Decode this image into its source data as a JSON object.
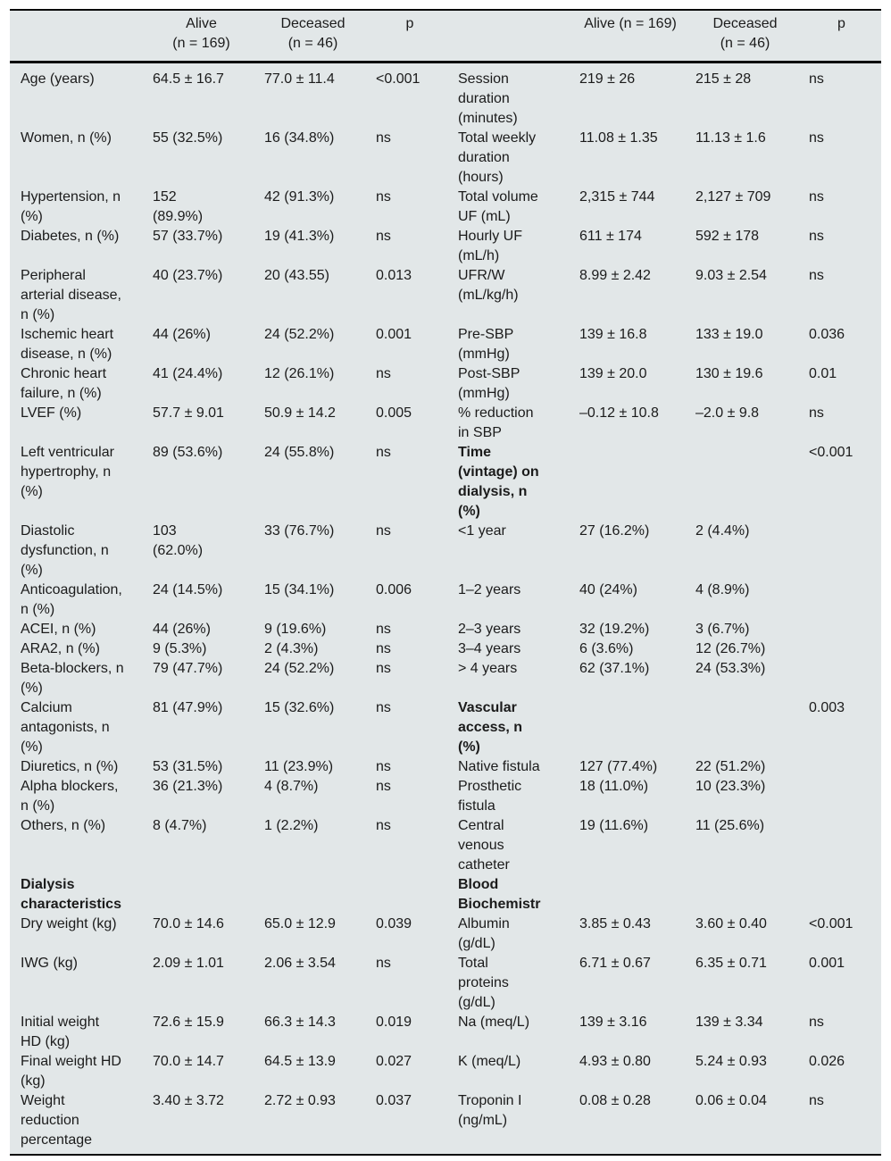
{
  "table": {
    "header": {
      "left": {
        "label": "",
        "alive": "Alive\n(n = 169)",
        "deceased": "Deceased\n(n = 46)",
        "p": "p"
      },
      "right": {
        "label": "",
        "alive": "Alive (n = 169)",
        "deceased": "Deceased\n(n = 46)",
        "p": "p"
      }
    },
    "rows": [
      {
        "left": {
          "label": "Age (years)",
          "alive": "64.5 ± 16.7",
          "deceased": "77.0 ± 11.4",
          "p": "<0.001"
        },
        "right": {
          "label": "Session\nduration\n(minutes)",
          "alive": "219 ± 26",
          "deceased": "215 ± 28",
          "p": "ns"
        }
      },
      {
        "left": {
          "label": "Women, n (%)",
          "alive": "55 (32.5%)",
          "deceased": "16 (34.8%)",
          "p": "ns"
        },
        "right": {
          "label": "Total weekly\nduration\n(hours)",
          "alive": "11.08 ± 1.35",
          "deceased": "11.13 ± 1.6",
          "p": "ns"
        }
      },
      {
        "left": {
          "label": "Hypertension, n\n(%)",
          "alive": "152\n(89.9%)",
          "deceased": "42 (91.3%)",
          "p": "ns"
        },
        "right": {
          "label": "Total volume\nUF (mL)",
          "alive": "2,315 ± 744",
          "deceased": "2,127 ± 709",
          "p": "ns"
        }
      },
      {
        "left": {
          "label": "Diabetes, n (%)",
          "alive": "57 (33.7%)",
          "deceased": "19 (41.3%)",
          "p": "ns"
        },
        "right": {
          "label": "Hourly UF\n(mL/h)",
          "alive": "611 ± 174",
          "deceased": "592 ± 178",
          "p": "ns"
        }
      },
      {
        "left": {
          "label": "Peripheral\narterial disease,\nn (%)",
          "alive": "40 (23.7%)",
          "deceased": "20 (43.55)",
          "p": "0.013"
        },
        "right": {
          "label": "UFR/W\n(mL/kg/h)",
          "alive": "8.99 ± 2.42",
          "deceased": "9.03 ± 2.54",
          "p": "ns"
        }
      },
      {
        "left": {
          "label": "Ischemic heart\ndisease, n (%)",
          "alive": "44 (26%)",
          "deceased": "24 (52.2%)",
          "p": "0.001"
        },
        "right": {
          "label": "Pre-SBP\n(mmHg)",
          "alive": "139 ± 16.8",
          "deceased": "133 ± 19.0",
          "p": "0.036"
        }
      },
      {
        "left": {
          "label": "Chronic heart\nfailure, n (%)",
          "alive": "41 (24.4%)",
          "deceased": "12 (26.1%)",
          "p": "ns"
        },
        "right": {
          "label": "Post-SBP\n(mmHg)",
          "alive": "139 ± 20.0",
          "deceased": "130 ± 19.6",
          "p": "0.01"
        }
      },
      {
        "left": {
          "label": "LVEF (%)",
          "alive": "57.7 ± 9.01",
          "deceased": "50.9 ± 14.2",
          "p": "0.005"
        },
        "right": {
          "label": "% reduction\nin SBP",
          "alive": "–0.12 ± 10.8",
          "deceased": "–2.0 ± 9.8",
          "p": "ns"
        }
      },
      {
        "left": {
          "label": "Left ventricular\nhypertrophy, n\n(%)",
          "alive": "89 (53.6%)",
          "deceased": "24 (55.8%)",
          "p": "ns"
        },
        "right": {
          "label": "Time\n(vintage) on\ndialysis, n\n(%)",
          "alive": "",
          "deceased": "",
          "p": "<0.001",
          "bold": true
        }
      },
      {
        "left": {
          "label": "Diastolic\ndysfunction, n\n(%)",
          "alive": "103\n(62.0%)",
          "deceased": "33 (76.7%)",
          "p": "ns"
        },
        "right": {
          "label": "<1 year",
          "alive": "27 (16.2%)",
          "deceased": "2 (4.4%)",
          "p": ""
        }
      },
      {
        "left": {
          "label": "Anticoagulation,\nn (%)",
          "alive": "24 (14.5%)",
          "deceased": "15 (34.1%)",
          "p": "0.006"
        },
        "right": {
          "label": "1–2 years",
          "alive": "40 (24%)",
          "deceased": "4 (8.9%)",
          "p": ""
        }
      },
      {
        "left": {
          "label": "ACEI, n (%)",
          "alive": "44 (26%)",
          "deceased": "9 (19.6%)",
          "p": "ns"
        },
        "right": {
          "label": "2–3 years",
          "alive": "32 (19.2%)",
          "deceased": "3 (6.7%)",
          "p": ""
        }
      },
      {
        "left": {
          "label": "ARA2, n (%)",
          "alive": "9 (5.3%)",
          "deceased": "2 (4.3%)",
          "p": "ns"
        },
        "right": {
          "label": "3–4 years",
          "alive": "6 (3.6%)",
          "deceased": "12 (26.7%)",
          "p": ""
        }
      },
      {
        "left": {
          "label": "Beta-blockers, n\n(%)",
          "alive": "79 (47.7%)",
          "deceased": "24 (52.2%)",
          "p": "ns"
        },
        "right": {
          "label": "> 4 years",
          "alive": "62 (37.1%)",
          "deceased": "24 (53.3%)",
          "p": ""
        }
      },
      {
        "left": {
          "label": "Calcium\nantagonists, n\n(%)",
          "alive": "81 (47.9%)",
          "deceased": "15 (32.6%)",
          "p": "ns"
        },
        "right": {
          "label": "Vascular\naccess, n\n(%)",
          "alive": "",
          "deceased": "",
          "p": "0.003",
          "bold": true
        }
      },
      {
        "left": {
          "label": "Diuretics, n (%)",
          "alive": "53 (31.5%)",
          "deceased": "11 (23.9%)",
          "p": "ns"
        },
        "right": {
          "label": "Native fistula",
          "alive": "127 (77.4%)",
          "deceased": "22 (51.2%)",
          "p": ""
        }
      },
      {
        "left": {
          "label": "Alpha blockers,\nn (%)",
          "alive": "36 (21.3%)",
          "deceased": "4 (8.7%)",
          "p": "ns"
        },
        "right": {
          "label": "Prosthetic\nfistula",
          "alive": "18 (11.0%)",
          "deceased": "10 (23.3%)",
          "p": ""
        }
      },
      {
        "left": {
          "label": "Others, n (%)",
          "alive": "8 (4.7%)",
          "deceased": "1 (2.2%)",
          "p": "ns"
        },
        "right": {
          "label": "Central\nvenous\ncatheter",
          "alive": "19 (11.6%)",
          "deceased": "11 (25.6%)",
          "p": ""
        }
      },
      {
        "left": {
          "label": "Dialysis\ncharacteristics",
          "alive": "",
          "deceased": "",
          "p": "",
          "bold": true
        },
        "right": {
          "label": "Blood\nBiochemistr",
          "alive": "",
          "deceased": "",
          "p": "",
          "bold": true
        }
      },
      {
        "left": {
          "label": "Dry weight (kg)",
          "alive": "70.0 ± 14.6",
          "deceased": "65.0 ± 12.9",
          "p": "0.039"
        },
        "right": {
          "label": "Albumin\n(g/dL)",
          "alive": "3.85 ± 0.43",
          "deceased": "3.60 ± 0.40",
          "p": "<0.001"
        }
      },
      {
        "left": {
          "label": "IWG (kg)",
          "alive": "2.09 ± 1.01",
          "deceased": "2.06 ± 3.54",
          "p": "ns"
        },
        "right": {
          "label": "Total\nproteins\n(g/dL)",
          "alive": "6.71 ± 0.67",
          "deceased": "6.35 ± 0.71",
          "p": "0.001"
        }
      },
      {
        "left": {
          "label": "Initial weight\nHD (kg)",
          "alive": "72.6 ± 15.9",
          "deceased": "66.3 ± 14.3",
          "p": "0.019"
        },
        "right": {
          "label": "Na (meq/L)",
          "alive": "139 ± 3.16",
          "deceased": "139 ± 3.34",
          "p": "ns"
        }
      },
      {
        "left": {
          "label": "Final weight HD\n(kg)",
          "alive": "70.0 ± 14.7",
          "deceased": "64.5 ± 13.9",
          "p": "0.027"
        },
        "right": {
          "label": "K (meq/L)",
          "alive": "4.93 ± 0.80",
          "deceased": "5.24 ± 0.93",
          "p": "0.026"
        }
      },
      {
        "left": {
          "label": "Weight\nreduction\npercentage",
          "alive": "3.40 ± 3.72",
          "deceased": "2.72 ± 0.93",
          "p": "0.037"
        },
        "right": {
          "label": "Troponin I\n(ng/mL)",
          "alive": "0.08 ± 0.28",
          "deceased": "0.06 ± 0.04",
          "p": "ns"
        }
      }
    ]
  },
  "colors": {
    "table_background": "#e2e7e8",
    "rule": "#0a0a0a",
    "text": "#1b1b1b"
  }
}
